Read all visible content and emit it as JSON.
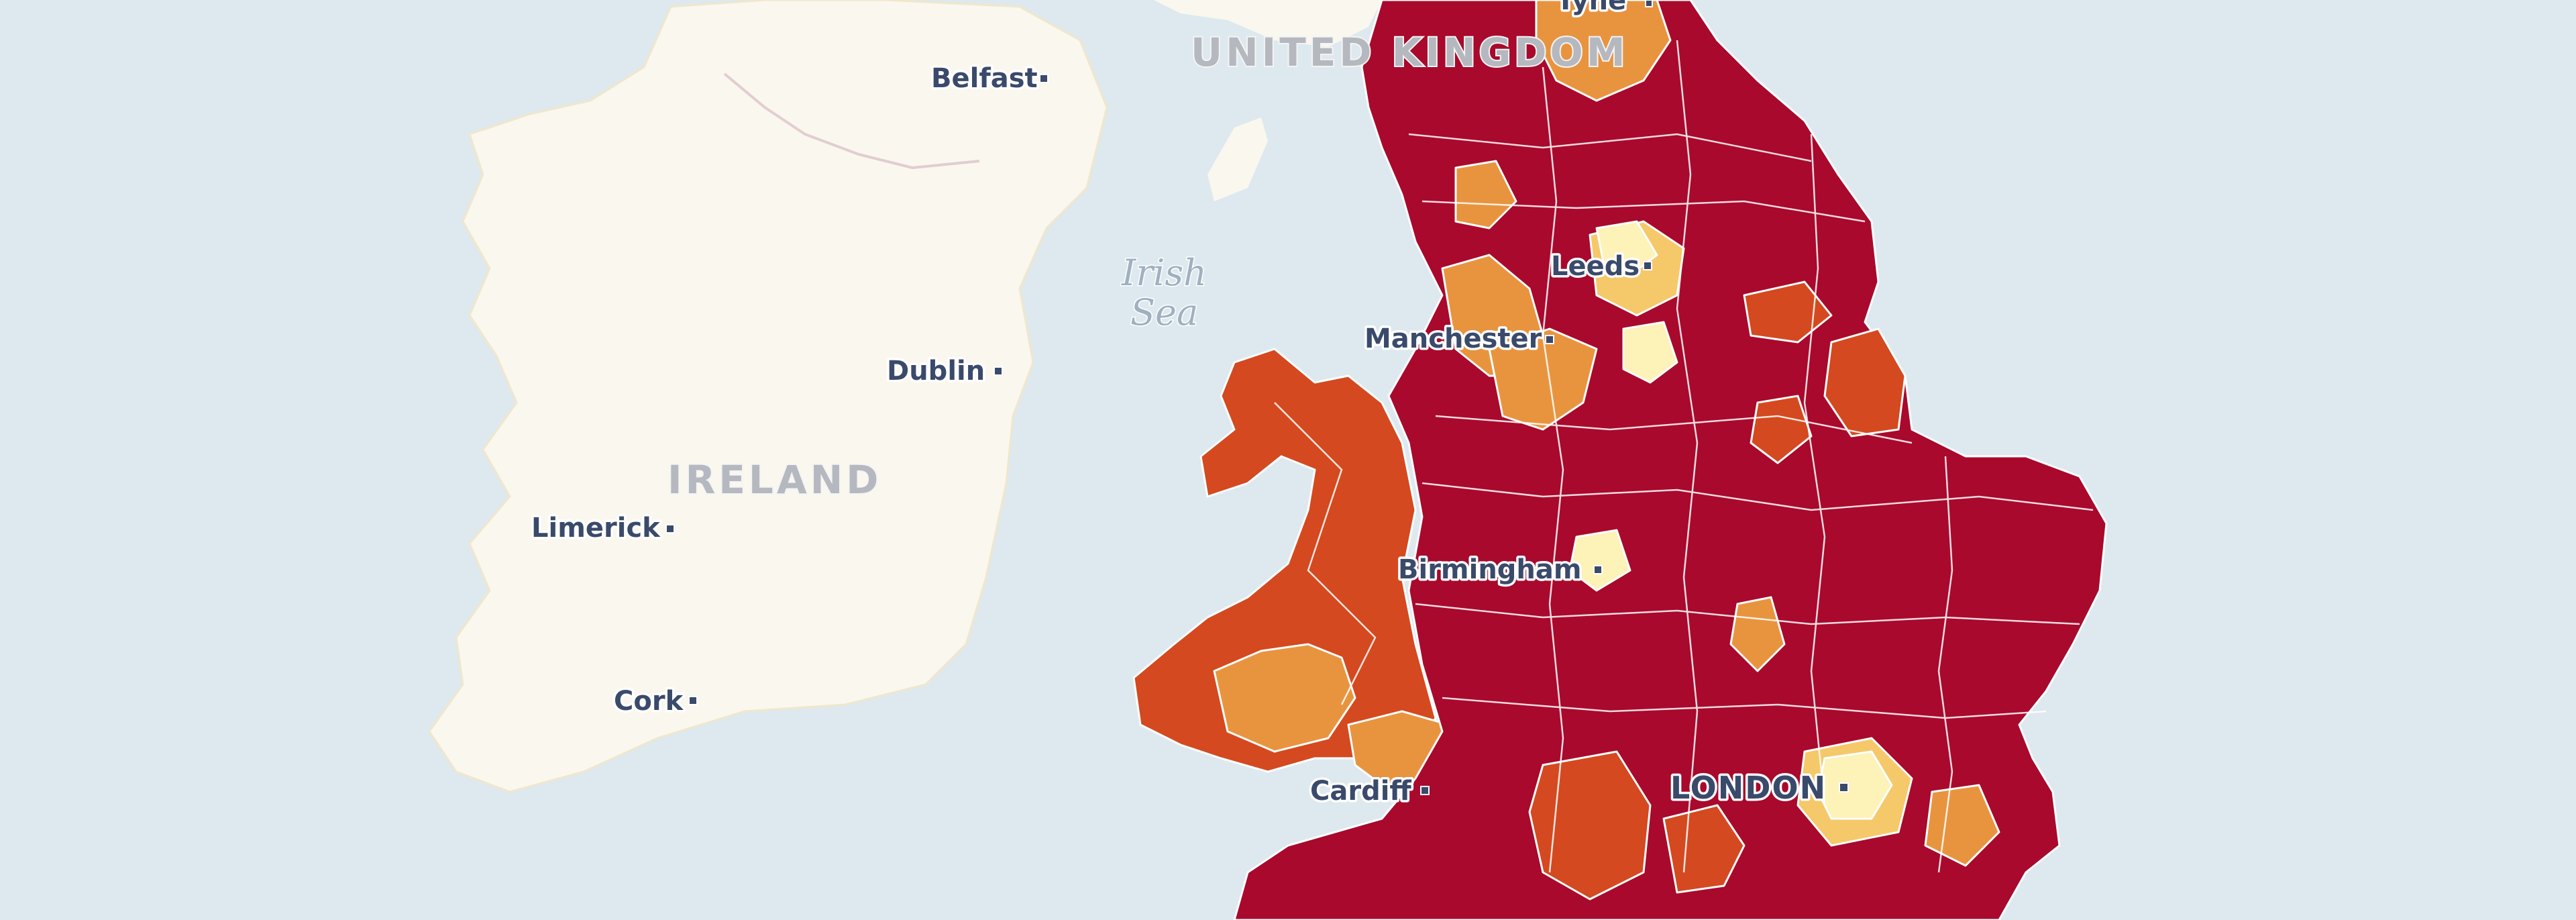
{
  "map": {
    "countries": {
      "uk": "UNITED KINGDOM",
      "ireland": "IRELAND"
    },
    "water": {
      "irish_sea_line1": "Irish",
      "irish_sea_line2": "Sea"
    },
    "cities": {
      "tyne": "Tyne",
      "belfast": "Belfast",
      "leeds": "Leeds",
      "manchester": "Manchester",
      "dublin": "Dublin",
      "limerick": "Limerick",
      "birmingham": "Birmingham",
      "cork": "Cork",
      "cardiff": "Cardiff",
      "london": "LONDON"
    },
    "colors": {
      "water": "#dde9ee",
      "land": "#faf7ef",
      "class_highest": "#a8092c",
      "class_high": "#d4491f",
      "class_medium": "#e8943f",
      "class_low": "#f5c86a",
      "class_lowest": "#fdf2b8"
    }
  }
}
